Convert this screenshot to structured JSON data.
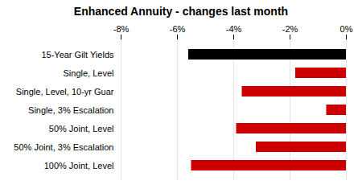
{
  "chart_data": {
    "type": "bar",
    "orientation": "horizontal",
    "title": "Enhanced Annuity - changes last month",
    "categories": [
      "15-Year Gilt Yields",
      "Single, Level",
      "Single, Level, 10-yr Guar",
      "Single, 3% Escalation",
      "50% Joint, Level",
      "50% Joint, 3% Escalation",
      "100% Joint, Level"
    ],
    "values": [
      -5.6,
      -1.8,
      -3.7,
      -0.7,
      -3.9,
      -3.2,
      -5.5
    ],
    "colors": [
      "#000000",
      "#cc0000",
      "#cc0000",
      "#cc0000",
      "#cc0000",
      "#cc0000",
      "#cc0000"
    ],
    "xlim": [
      -8,
      0
    ],
    "xticks": [
      {
        "value": -8,
        "label": "-8%"
      },
      {
        "value": -6,
        "label": "-6%"
      },
      {
        "value": -4,
        "label": "-4%"
      },
      {
        "value": -2,
        "label": "-2%"
      },
      {
        "value": 0,
        "label": "0%"
      }
    ],
    "grid": true
  }
}
